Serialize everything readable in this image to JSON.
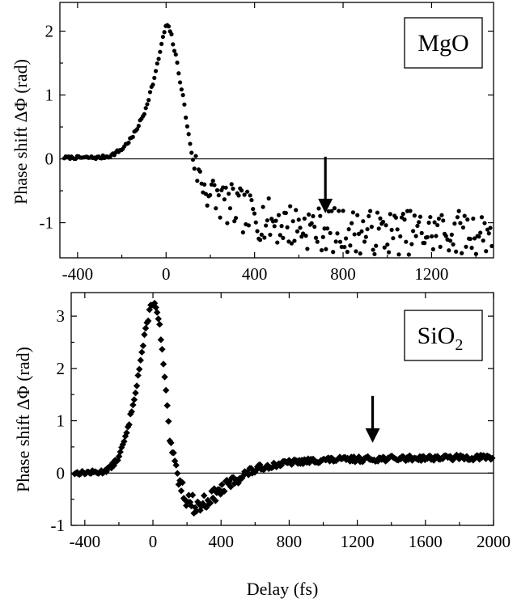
{
  "chart_data": [
    {
      "type": "scatter",
      "panel": "top",
      "marker": "circle",
      "legend": "MgO",
      "ylabel": "Phase shift ΔΦ (rad)",
      "xlabel": "",
      "xlim": [
        -480,
        1480
      ],
      "ylim": [
        -1.55,
        2.45
      ],
      "xticks": [
        -400,
        0,
        400,
        800,
        1200
      ],
      "yticks": [
        -1,
        0,
        1,
        2
      ],
      "xtick_labels": [
        "-400",
        "0",
        "400",
        "800",
        "1200"
      ],
      "ytick_labels": [
        "-1",
        "0",
        "1",
        "2"
      ],
      "zero_line": true,
      "arrow_x": 720,
      "envelope": [
        [
          -460,
          0.02
        ],
        [
          -300,
          0.02
        ],
        [
          -250,
          0.05
        ],
        [
          -200,
          0.15
        ],
        [
          -150,
          0.35
        ],
        [
          -100,
          0.7
        ],
        [
          -50,
          1.3
        ],
        [
          -20,
          1.8
        ],
        [
          0,
          2.1
        ],
        [
          20,
          2.0
        ],
        [
          50,
          1.5
        ],
        [
          80,
          0.9
        ],
        [
          100,
          0.4
        ],
        [
          120,
          0.05
        ],
        [
          150,
          -0.3
        ],
        [
          200,
          -0.55
        ],
        [
          300,
          -0.75
        ],
        [
          400,
          -0.9
        ],
        [
          500,
          -1.0
        ],
        [
          600,
          -1.05
        ],
        [
          700,
          -1.1
        ],
        [
          900,
          -1.15
        ],
        [
          1200,
          -1.15
        ],
        [
          1480,
          -1.15
        ]
      ],
      "noise_amp": [
        [
          -460,
          0.02
        ],
        [
          100,
          0.04
        ],
        [
          150,
          0.3
        ],
        [
          300,
          0.35
        ],
        [
          700,
          0.35
        ],
        [
          1480,
          0.35
        ]
      ],
      "n_points": 300
    },
    {
      "type": "scatter",
      "panel": "bottom",
      "marker": "diamond",
      "legend": "SiO",
      "legend_sub": "2",
      "ylabel": "Phase shift ΔΦ (rad)",
      "xlabel": "Delay (fs)",
      "xlim": [
        -480,
        2000
      ],
      "ylim": [
        -1,
        3.45
      ],
      "xticks": [
        -400,
        0,
        400,
        800,
        1200,
        1600,
        2000
      ],
      "yticks": [
        -1,
        0,
        1,
        2,
        3
      ],
      "xtick_labels": [
        "-400",
        "0",
        "400",
        "800",
        "1200",
        "1600",
        "2000"
      ],
      "ytick_labels": [
        "-1",
        "0",
        "1",
        "2",
        "3"
      ],
      "zero_line": true,
      "arrow_x": 1290,
      "envelope": [
        [
          -450,
          0.0
        ],
        [
          -300,
          0.02
        ],
        [
          -250,
          0.1
        ],
        [
          -200,
          0.3
        ],
        [
          -150,
          0.8
        ],
        [
          -100,
          1.6
        ],
        [
          -50,
          2.6
        ],
        [
          -10,
          3.25
        ],
        [
          10,
          3.25
        ],
        [
          40,
          2.8
        ],
        [
          70,
          1.8
        ],
        [
          100,
          0.6
        ],
        [
          150,
          -0.1
        ],
        [
          200,
          -0.5
        ],
        [
          260,
          -0.65
        ],
        [
          350,
          -0.45
        ],
        [
          450,
          -0.2
        ],
        [
          550,
          0.0
        ],
        [
          650,
          0.12
        ],
        [
          800,
          0.2
        ],
        [
          1000,
          0.25
        ],
        [
          1300,
          0.27
        ],
        [
          1600,
          0.29
        ],
        [
          2000,
          0.3
        ]
      ],
      "noise_amp": [
        [
          -450,
          0.03
        ],
        [
          100,
          0.06
        ],
        [
          200,
          0.18
        ],
        [
          400,
          0.12
        ],
        [
          700,
          0.05
        ],
        [
          2000,
          0.05
        ]
      ],
      "n_points": 330
    }
  ]
}
